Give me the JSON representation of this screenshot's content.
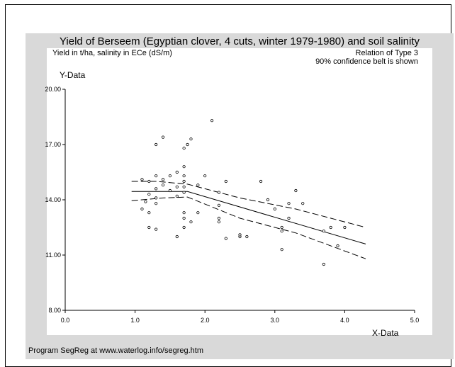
{
  "chart_data": {
    "type": "scatter",
    "title": "Yield of Berseem (Egyptian clover, 4 cuts, winter 1979-1980) and soil salinity",
    "subtitle_left": "Yield in t/ha, salinity in ECe (dS/m)",
    "subtitle_right": [
      "Relation of Type 3",
      "90% confidence belt is shown"
    ],
    "ylabel": "Y-Data",
    "xlabel": "X-Data",
    "xlim": [
      0,
      5
    ],
    "ylim": [
      8,
      20
    ],
    "xticks": [
      0,
      1,
      2,
      3,
      4,
      5
    ],
    "xtick_labels": [
      "0.0",
      "1.0",
      "2.0",
      "3.0",
      "4.0",
      "5.0"
    ],
    "yticks": [
      8,
      11,
      14,
      17,
      20
    ],
    "ytick_labels": [
      "8.00",
      "11.00",
      "14.00",
      "17.00",
      "20.00"
    ],
    "footer": "Program SegReg at www.waterlog.info/segreg.htm",
    "points": [
      [
        1.1,
        15.1
      ],
      [
        1.1,
        13.5
      ],
      [
        1.15,
        13.9
      ],
      [
        1.2,
        15.0
      ],
      [
        1.2,
        14.3
      ],
      [
        1.2,
        13.3
      ],
      [
        1.2,
        12.5
      ],
      [
        1.3,
        15.3
      ],
      [
        1.3,
        14.6
      ],
      [
        1.3,
        14.1
      ],
      [
        1.3,
        13.8
      ],
      [
        1.3,
        12.4
      ],
      [
        1.3,
        17.0
      ],
      [
        1.4,
        17.4
      ],
      [
        1.4,
        15.1
      ],
      [
        1.4,
        14.8
      ],
      [
        1.5,
        15.3
      ],
      [
        1.5,
        14.5
      ],
      [
        1.6,
        15.5
      ],
      [
        1.6,
        14.7
      ],
      [
        1.6,
        14.2
      ],
      [
        1.6,
        12.0
      ],
      [
        1.7,
        16.8
      ],
      [
        1.7,
        15.8
      ],
      [
        1.7,
        15.3
      ],
      [
        1.7,
        15.0
      ],
      [
        1.7,
        14.7
      ],
      [
        1.7,
        14.4
      ],
      [
        1.7,
        13.3
      ],
      [
        1.7,
        13.0
      ],
      [
        1.7,
        12.5
      ],
      [
        1.75,
        17.0
      ],
      [
        1.8,
        17.3
      ],
      [
        1.8,
        12.8
      ],
      [
        1.9,
        14.8
      ],
      [
        1.9,
        13.3
      ],
      [
        2.0,
        15.3
      ],
      [
        2.1,
        18.3
      ],
      [
        2.2,
        14.4
      ],
      [
        2.2,
        13.7
      ],
      [
        2.2,
        13.0
      ],
      [
        2.2,
        12.8
      ],
      [
        2.3,
        15.0
      ],
      [
        2.3,
        11.9
      ],
      [
        2.5,
        12.0
      ],
      [
        2.5,
        12.1
      ],
      [
        2.6,
        12.0
      ],
      [
        2.8,
        15.0
      ],
      [
        2.9,
        14.0
      ],
      [
        3.0,
        13.5
      ],
      [
        3.1,
        12.5
      ],
      [
        3.1,
        12.3
      ],
      [
        3.1,
        11.3
      ],
      [
        3.2,
        13.0
      ],
      [
        3.2,
        13.8
      ],
      [
        3.3,
        14.5
      ],
      [
        3.4,
        13.8
      ],
      [
        3.7,
        12.3
      ],
      [
        3.7,
        10.5
      ],
      [
        3.8,
        12.5
      ],
      [
        3.9,
        11.5
      ],
      [
        4.0,
        12.5
      ]
    ],
    "regression": [
      [
        0.95,
        14.45
      ],
      [
        1.75,
        14.45
      ],
      [
        4.3,
        11.6
      ]
    ],
    "upper_belt": [
      [
        0.95,
        15.0
      ],
      [
        1.3,
        15.0
      ],
      [
        1.75,
        14.85
      ],
      [
        2.5,
        14.1
      ],
      [
        3.3,
        13.5
      ],
      [
        4.3,
        12.5
      ]
    ],
    "lower_belt": [
      [
        0.95,
        13.95
      ],
      [
        1.4,
        14.1
      ],
      [
        1.75,
        14.15
      ],
      [
        2.5,
        13.0
      ],
      [
        3.3,
        12.2
      ],
      [
        4.3,
        10.8
      ]
    ],
    "grid": false,
    "legend": "none"
  }
}
